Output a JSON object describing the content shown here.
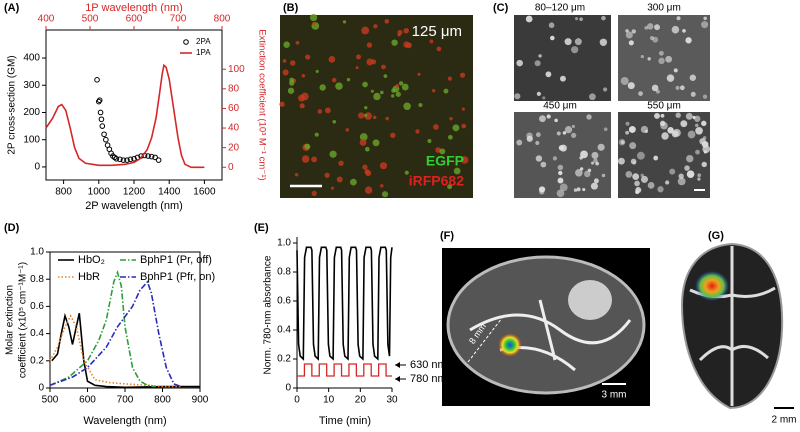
{
  "chart_data": [
    {
      "type": "combo",
      "panel_label": "(A)",
      "x_label": "2P wavelength (nm)",
      "x2_label": "1P wavelength (nm)",
      "y_label": "2P cross-section (GM)",
      "y2_label": "Extinction coefficient (10³ M⁻¹ cm⁻¹)",
      "xlim": [
        700,
        1700
      ],
      "xticks": [
        800,
        1000,
        1200,
        1400,
        1600
      ],
      "x2lim": [
        400,
        800
      ],
      "x2ticks": [
        400,
        500,
        600,
        700,
        800
      ],
      "ylim": [
        -48,
        503
      ],
      "yticks": [
        0,
        100,
        200,
        300,
        400
      ],
      "y2lim": [
        -13,
        140
      ],
      "y2ticks": [
        0,
        20,
        40,
        60,
        80,
        100
      ],
      "y2_color": "#d62728",
      "legend": "upper right",
      "series": [
        {
          "name": "2PA",
          "mode": "markers",
          "color": "#000000",
          "x": [
            990,
            1000,
            1005,
            1010,
            1015,
            1020,
            1030,
            1040,
            1050,
            1060,
            1070,
            1080,
            1090,
            1100,
            1120,
            1140,
            1160,
            1180,
            1200,
            1220,
            1240,
            1260,
            1280,
            1300,
            1320,
            1340
          ],
          "values": [
            320,
            240,
            245,
            200,
            175,
            150,
            120,
            100,
            80,
            65,
            50,
            40,
            35,
            30,
            28,
            25,
            25,
            28,
            30,
            35,
            40,
            42,
            40,
            38,
            35,
            25
          ]
        },
        {
          "name": "1PA",
          "mode": "line",
          "color": "#d62728",
          "axis": "y2",
          "xaxis": "x2",
          "x": [
            400,
            415,
            428,
            436,
            445,
            455,
            465,
            475,
            490,
            520,
            550,
            580,
            600,
            615,
            630,
            640,
            650,
            658,
            664,
            668,
            673,
            680,
            690,
            700,
            708,
            716,
            730,
            760
          ],
          "values": [
            40,
            50,
            62,
            64,
            58,
            40,
            20,
            9,
            4,
            2,
            2,
            3,
            5,
            9,
            18,
            30,
            50,
            75,
            95,
            104,
            102,
            90,
            60,
            30,
            12,
            3,
            0,
            0
          ]
        }
      ]
    },
    {
      "type": "line",
      "panel_label": "(D)",
      "x_label": "Wavelength (nm)",
      "y_label": [
        "Molar extinction",
        "coefficient (x10⁵ cm⁻¹M⁻¹)"
      ],
      "xlim": [
        500,
        900
      ],
      "xticks": [
        500,
        600,
        700,
        800,
        900
      ],
      "ylim": [
        0,
        1
      ],
      "yticks": [
        0,
        0.2,
        0.4,
        0.6,
        0.8,
        {
          "value": 1,
          "label": "1.0"
        }
      ],
      "series": [
        {
          "name": "HbO₂",
          "color": "#000000",
          "dash": "solid",
          "x": [
            505,
            520,
            530,
            540,
            550,
            560,
            570,
            578,
            590,
            600,
            620,
            650,
            700,
            800,
            900
          ],
          "values": [
            0.2,
            0.25,
            0.4,
            0.53,
            0.45,
            0.32,
            0.45,
            0.55,
            0.2,
            0.05,
            0.02,
            0.01,
            0.005,
            0.01,
            0.01
          ]
        },
        {
          "name": "HbR",
          "color": "#e8822a",
          "dash": "dotted",
          "x": [
            500,
            520,
            540,
            555,
            570,
            590,
            620,
            660,
            700,
            760,
            800,
            850
          ],
          "values": [
            0.2,
            0.3,
            0.45,
            0.53,
            0.45,
            0.2,
            0.06,
            0.04,
            0.03,
            0.02,
            0.01,
            0.01
          ]
        },
        {
          "name": "BphP1 (Pr, off)",
          "color": "#2e9e3a",
          "dash": "dashdot",
          "x": [
            500,
            550,
            600,
            630,
            650,
            670,
            680,
            690,
            700,
            720,
            740,
            760,
            780
          ],
          "values": [
            0.02,
            0.08,
            0.2,
            0.35,
            0.5,
            0.78,
            0.85,
            0.75,
            0.45,
            0.15,
            0.05,
            0.02,
            0.01
          ]
        },
        {
          "name": "BphP1 (Pfr, on)",
          "color": "#2b2bb8",
          "dash": "dashdot",
          "x": [
            500,
            560,
            600,
            650,
            680,
            720,
            740,
            760,
            770,
            790,
            810,
            830,
            850
          ],
          "values": [
            0.02,
            0.08,
            0.15,
            0.3,
            0.45,
            0.6,
            0.72,
            0.78,
            0.7,
            0.4,
            0.15,
            0.03,
            0.01
          ]
        }
      ]
    },
    {
      "type": "line",
      "panel_label": "(E)",
      "x_label": "Time (min)",
      "y_label": "Norm. 780-nm absorbance",
      "xlim": [
        0,
        30
      ],
      "xticks": [
        0,
        10,
        20,
        30
      ],
      "ylim": [
        0,
        1
      ],
      "yticks": [
        0,
        0.2,
        0.4,
        0.6,
        0.8,
        {
          "value": 1,
          "label": "1.0"
        }
      ],
      "annotations": [
        "630 nm",
        "780 nm"
      ],
      "series": [
        {
          "color": "#000000",
          "dash": "solid",
          "x": [
            0,
            0.5,
            1,
            2,
            2.4,
            3,
            4.4,
            4.7,
            5.2,
            5.7,
            6.7,
            7.1,
            7.7,
            9.1,
            9.4,
            9.9,
            10.4,
            11.4,
            11.8,
            12.4,
            13.8,
            14.1,
            14.6,
            15.1,
            16.1,
            16.5,
            17.1,
            18.5,
            18.8,
            19.3,
            19.8,
            20.8,
            21.2,
            21.8,
            23.2,
            23.5,
            24,
            24.5,
            25.5,
            25.9,
            26.5,
            27.9,
            28.2,
            28.7,
            29.2,
            29.6,
            30
          ],
          "values": [
            0.95,
            0.3,
            0.22,
            0.2,
            0.9,
            0.97,
            0.97,
            0.95,
            0.3,
            0.22,
            0.2,
            0.9,
            0.97,
            0.97,
            0.95,
            0.3,
            0.22,
            0.2,
            0.9,
            0.97,
            0.97,
            0.95,
            0.3,
            0.22,
            0.2,
            0.9,
            0.97,
            0.97,
            0.95,
            0.3,
            0.22,
            0.2,
            0.9,
            0.97,
            0.97,
            0.95,
            0.3,
            0.22,
            0.2,
            0.9,
            0.97,
            0.97,
            0.95,
            0.3,
            0.22,
            0.9,
            0.97
          ]
        }
      ]
    }
  ],
  "panels": [
    {
      "label": "(B)",
      "texts": [
        "125 μm",
        "EGFP",
        "iRFP682"
      ]
    },
    {
      "label": "(C)",
      "texts": [
        "80–120 μm",
        "300 μm",
        "450 μm",
        "550 μm"
      ]
    },
    {
      "label": "(F)",
      "texts": [
        "8 mm",
        "3 mm"
      ]
    },
    {
      "label": "(G)",
      "texts": [
        "2 mm"
      ]
    }
  ]
}
